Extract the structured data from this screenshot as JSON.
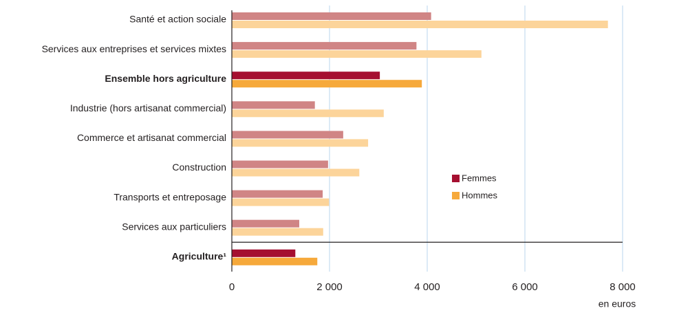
{
  "chart_data": {
    "type": "hbar",
    "categories": [
      "Santé et action sociale",
      "Services aux entreprises et services mixtes",
      "Ensemble hors agriculture",
      "Industrie (hors artisanat commercial)",
      "Commerce et artisanat commercial",
      "Construction",
      "Transports et entreposage",
      "Services aux particuliers",
      "Agriculture¹"
    ],
    "emphasis": [
      false,
      false,
      true,
      false,
      false,
      false,
      false,
      false,
      true
    ],
    "series": [
      {
        "name": "Femmes",
        "color": "#d08585",
        "highlight_color": "#a50f30",
        "values": [
          4080,
          3780,
          3030,
          1700,
          2280,
          1970,
          1860,
          1380,
          1300
        ]
      },
      {
        "name": "Hommes",
        "color": "#fcd49a",
        "highlight_color": "#f6a93b",
        "values": [
          7700,
          5110,
          3890,
          3110,
          2790,
          2610,
          1990,
          1870,
          1750
        ]
      }
    ],
    "xlim": [
      0,
      8000
    ],
    "xticks": [
      0,
      {
        "value": 2000,
        "label": "2 000"
      },
      {
        "value": 4000,
        "label": "4 000"
      },
      {
        "value": 6000,
        "label": "6 000"
      },
      {
        "value": 8000,
        "label": "8 000"
      }
    ],
    "xlabel": "en euros",
    "grid": true
  }
}
